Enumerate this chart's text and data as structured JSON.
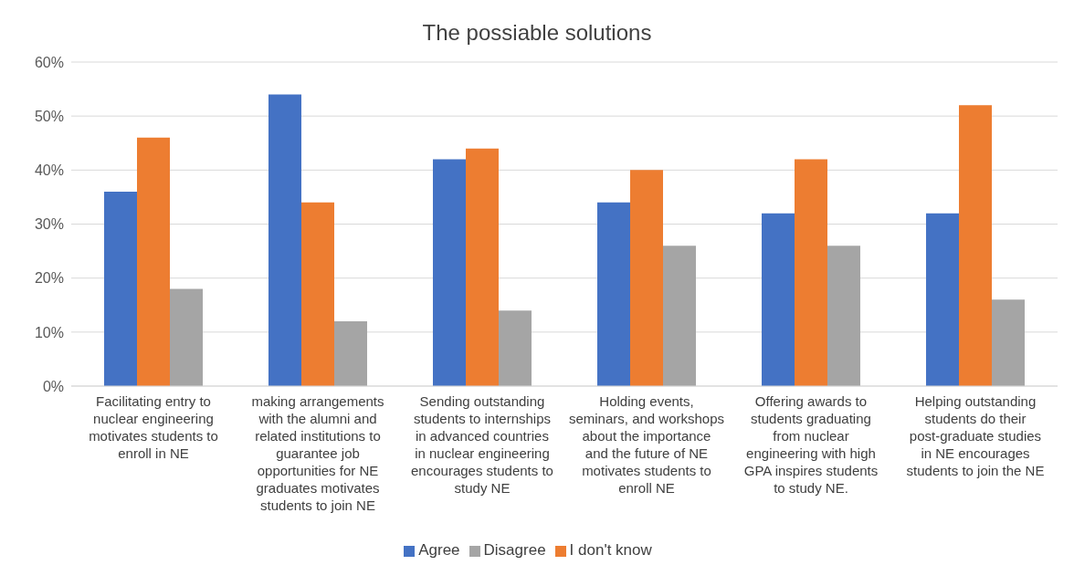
{
  "chart_data": {
    "type": "bar",
    "title": "The possiable solutions",
    "categories": [
      "Facilitating entry to nuclear engineering motivates students to enroll in NE",
      "making arrangements with the alumni and related institutions to guarantee job opportunities for NE graduates motivates students to join NE",
      "Sending outstanding students to internships in advanced countries in nuclear engineering encourages students to study NE",
      "Holding events, seminars, and workshops about the importance and the future of NE motivates students to enroll NE",
      "Offering awards to students graduating from nuclear engineering with high GPA inspires students to study NE.",
      "Helping outstanding students do their post-graduate studies in NE encourages students to join the NE"
    ],
    "series": [
      {
        "name": "Agree",
        "color": "#4472c4",
        "values": [
          36,
          54,
          42,
          34,
          32,
          32
        ]
      },
      {
        "name": "I don't know",
        "color": "#ed7d31",
        "values": [
          46,
          34,
          44,
          40,
          42,
          52
        ]
      },
      {
        "name": "Disagree",
        "color": "#a5a5a5",
        "values": [
          18,
          12,
          14,
          26,
          26,
          16
        ]
      }
    ],
    "ylim": [
      0,
      60
    ],
    "yticks": [
      {
        "value": 0,
        "label": "0%"
      },
      {
        "value": 10,
        "label": "10%"
      },
      {
        "value": 20,
        "label": "20%"
      },
      {
        "value": 30,
        "label": "30%"
      },
      {
        "value": 40,
        "label": "40%"
      },
      {
        "value": 50,
        "label": "50%"
      },
      {
        "value": 60,
        "label": "60%"
      }
    ],
    "grid": "y",
    "legend": "bottom"
  }
}
